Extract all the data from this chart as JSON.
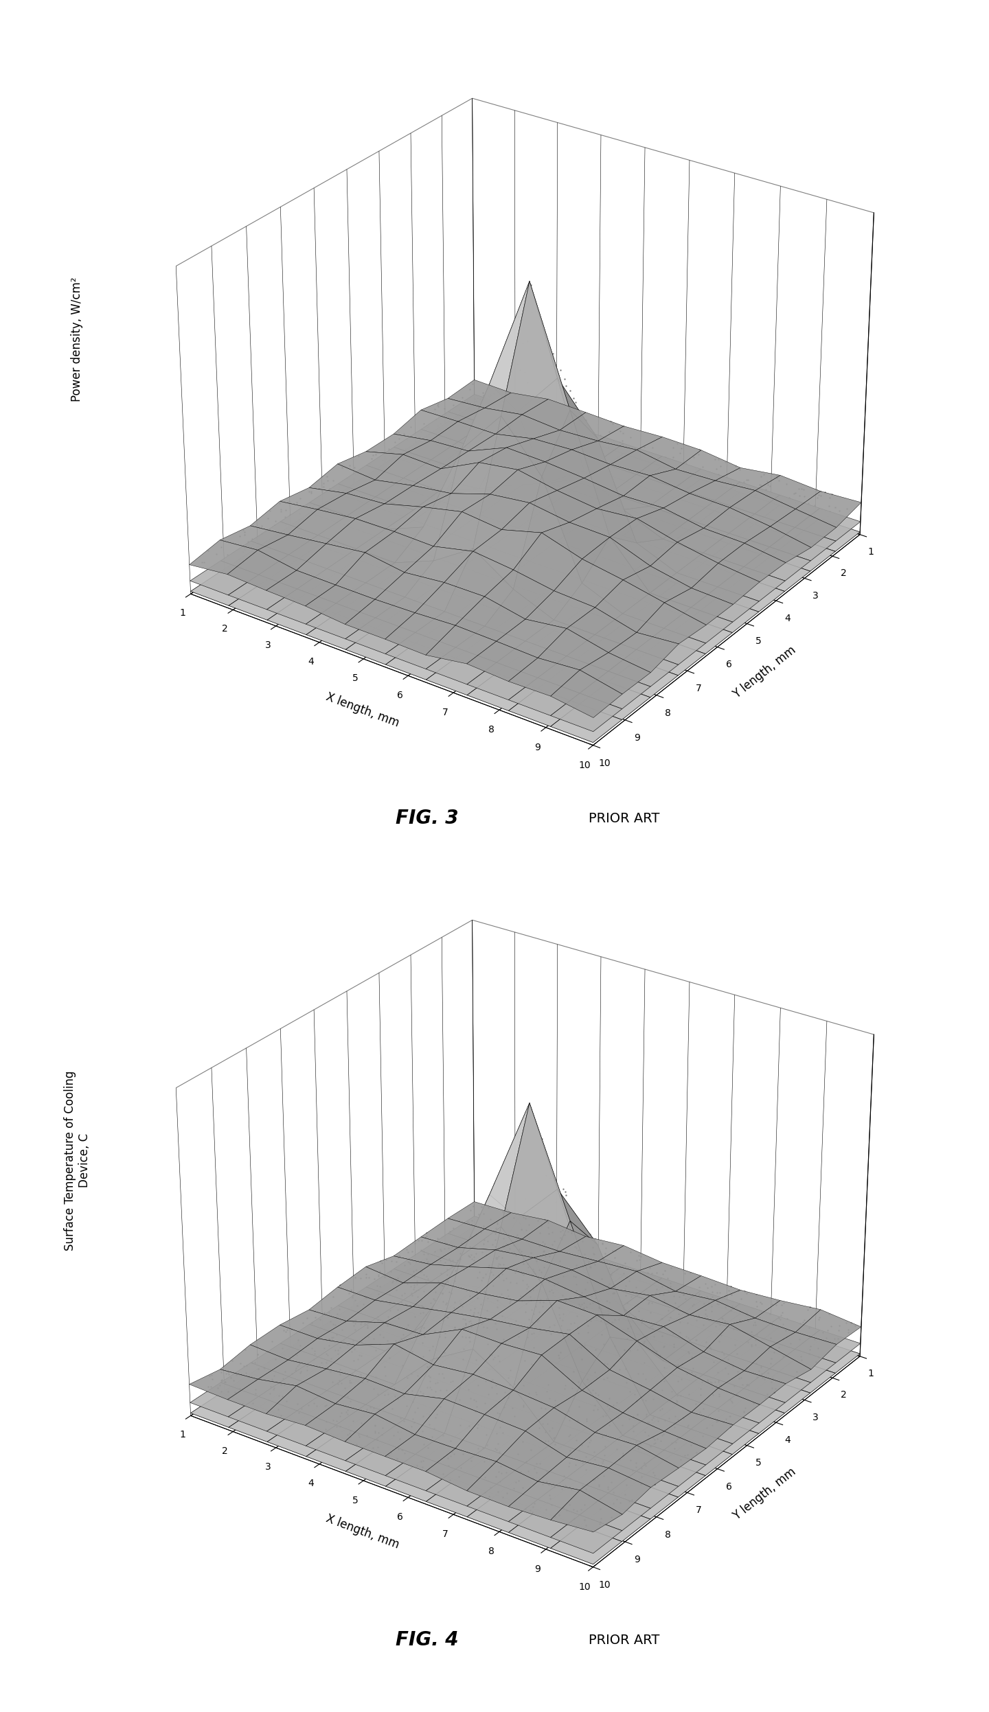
{
  "fig3": {
    "title": "FIG. 3",
    "subtitle": "PRIOR ART",
    "zlabel": "Power density, W/cm²",
    "xlabel": "X length, mm",
    "ylabel": "Y length, mm",
    "x_ticks": [
      1,
      2,
      3,
      4,
      5,
      6,
      7,
      8,
      9,
      10
    ],
    "y_ticks": [
      10,
      9,
      8,
      7,
      6,
      5,
      4,
      3,
      2,
      1
    ]
  },
  "fig4": {
    "title": "FIG. 4",
    "subtitle": "PRIOR ART",
    "zlabel": "Surface Temperature of Cooling\nDevice, C",
    "xlabel": "X length, mm",
    "ylabel": "Y length, mm",
    "x_ticks": [
      1,
      2,
      3,
      4,
      5,
      6,
      7,
      8,
      9,
      10
    ],
    "y_ticks": [
      10,
      9,
      8,
      7,
      6,
      5,
      4,
      3,
      2,
      1
    ]
  },
  "elev": 28,
  "azim": -55,
  "nx": 11,
  "ny": 11,
  "peak_ix": 5,
  "peak_iy": 5,
  "title_fontsize": 20,
  "subtitle_fontsize": 14,
  "label_fontsize": 12,
  "tick_fontsize": 10
}
